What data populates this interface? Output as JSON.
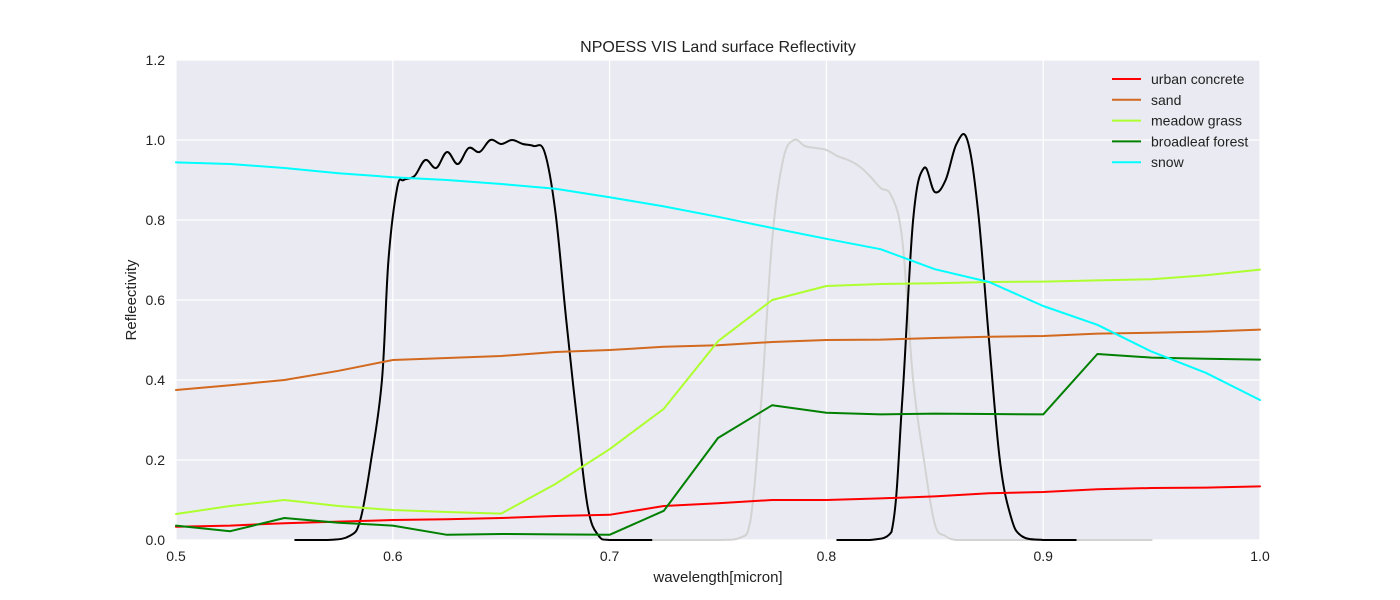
{
  "chart_data": {
    "type": "line",
    "title": "NPOESS VIS Land surface Reflectivity",
    "xlabel": "wavelength[micron]",
    "ylabel": "Refleectivity",
    "xlim": [
      0.5,
      1.0
    ],
    "ylim": [
      0.0,
      1.2
    ],
    "x_ticks": [
      0.5,
      0.6,
      0.7,
      0.8,
      0.9,
      1.0
    ],
    "x_tick_labels": [
      "0.5",
      "0.6",
      "0.7",
      "0.8",
      "0.9",
      "1.0"
    ],
    "y_ticks": [
      0.0,
      0.2,
      0.4,
      0.6,
      0.8,
      1.0,
      1.2
    ],
    "y_tick_labels": [
      "0.0",
      "0.2",
      "0.4",
      "0.6",
      "0.8",
      "1.0",
      "1.2"
    ],
    "grid": true,
    "background": "#eaeaf2",
    "legend_position": "top-right",
    "series": [
      {
        "name": "urban concrete",
        "color": "#ff0000",
        "x": [
          0.5,
          0.525,
          0.55,
          0.575,
          0.6,
          0.625,
          0.65,
          0.675,
          0.7,
          0.725,
          0.75,
          0.775,
          0.8,
          0.825,
          0.85,
          0.875,
          0.9,
          0.925,
          0.95,
          0.975,
          1.0
        ],
        "y": [
          0.033,
          0.036,
          0.042,
          0.046,
          0.05,
          0.052,
          0.055,
          0.06,
          0.063,
          0.085,
          0.092,
          0.1,
          0.1,
          0.104,
          0.109,
          0.117,
          0.12,
          0.127,
          0.13,
          0.131,
          0.134
        ]
      },
      {
        "name": "sand",
        "color": "#d2691e",
        "x": [
          0.5,
          0.525,
          0.55,
          0.575,
          0.6,
          0.625,
          0.65,
          0.675,
          0.7,
          0.725,
          0.75,
          0.775,
          0.8,
          0.825,
          0.85,
          0.875,
          0.9,
          0.925,
          0.95,
          0.975,
          1.0
        ],
        "y": [
          0.375,
          0.387,
          0.4,
          0.423,
          0.45,
          0.455,
          0.46,
          0.47,
          0.475,
          0.483,
          0.487,
          0.495,
          0.5,
          0.501,
          0.505,
          0.508,
          0.51,
          0.516,
          0.518,
          0.521,
          0.526
        ]
      },
      {
        "name": "meadow grass",
        "color": "#adff2f",
        "x": [
          0.5,
          0.525,
          0.55,
          0.575,
          0.6,
          0.625,
          0.65,
          0.675,
          0.7,
          0.725,
          0.75,
          0.775,
          0.8,
          0.825,
          0.85,
          0.875,
          0.9,
          0.925,
          0.95,
          0.975,
          1.0
        ],
        "y": [
          0.065,
          0.085,
          0.1,
          0.085,
          0.075,
          0.07,
          0.066,
          0.14,
          0.227,
          0.328,
          0.497,
          0.6,
          0.635,
          0.64,
          0.642,
          0.645,
          0.646,
          0.649,
          0.652,
          0.662,
          0.676
        ]
      },
      {
        "name": "broadleaf forest",
        "color": "#008000",
        "x": [
          0.5,
          0.525,
          0.55,
          0.575,
          0.6,
          0.625,
          0.65,
          0.675,
          0.7,
          0.725,
          0.75,
          0.775,
          0.8,
          0.825,
          0.85,
          0.875,
          0.9,
          0.925,
          0.95,
          0.975,
          1.0
        ],
        "y": [
          0.036,
          0.022,
          0.055,
          0.043,
          0.036,
          0.013,
          0.015,
          0.014,
          0.013,
          0.073,
          0.255,
          0.337,
          0.318,
          0.314,
          0.316,
          0.315,
          0.314,
          0.465,
          0.456,
          0.453,
          0.451
        ]
      },
      {
        "name": "snow",
        "color": "#00ffff",
        "x": [
          0.5,
          0.525,
          0.55,
          0.575,
          0.6,
          0.625,
          0.65,
          0.675,
          0.7,
          0.725,
          0.75,
          0.775,
          0.8,
          0.825,
          0.85,
          0.875,
          0.9,
          0.925,
          0.95,
          0.975,
          1.0
        ],
        "y": [
          0.944,
          0.94,
          0.93,
          0.917,
          0.907,
          0.9,
          0.89,
          0.878,
          0.857,
          0.834,
          0.808,
          0.78,
          0.753,
          0.727,
          0.677,
          0.645,
          0.585,
          0.538,
          0.471,
          0.418,
          0.35
        ]
      }
    ],
    "unlabeled_curves": [
      {
        "color": "#000000",
        "x": [
          0.555,
          0.57,
          0.58,
          0.585,
          0.59,
          0.595,
          0.598,
          0.602,
          0.605,
          0.61,
          0.615,
          0.62,
          0.625,
          0.63,
          0.635,
          0.64,
          0.645,
          0.65,
          0.655,
          0.66,
          0.665,
          0.67,
          0.675,
          0.68,
          0.685,
          0.69,
          0.695,
          0.7,
          0.72
        ],
        "y": [
          0.0,
          0.0,
          0.01,
          0.05,
          0.2,
          0.4,
          0.7,
          0.88,
          0.9,
          0.91,
          0.95,
          0.93,
          0.97,
          0.94,
          0.98,
          0.97,
          1.0,
          0.99,
          1.0,
          0.99,
          0.985,
          0.97,
          0.82,
          0.55,
          0.3,
          0.08,
          0.01,
          0.0,
          0.0
        ]
      },
      {
        "color": "#d3d3d3",
        "x": [
          0.72,
          0.75,
          0.76,
          0.765,
          0.77,
          0.775,
          0.78,
          0.785,
          0.79,
          0.795,
          0.8,
          0.805,
          0.81,
          0.815,
          0.82,
          0.825,
          0.83,
          0.835,
          0.84,
          0.845,
          0.85,
          0.855,
          0.86,
          0.87,
          0.95
        ],
        "y": [
          0.0,
          0.0,
          0.005,
          0.05,
          0.35,
          0.75,
          0.95,
          1.0,
          0.985,
          0.98,
          0.975,
          0.96,
          0.95,
          0.935,
          0.91,
          0.88,
          0.86,
          0.75,
          0.4,
          0.2,
          0.04,
          0.01,
          0.0,
          0.0,
          0.0
        ]
      },
      {
        "color": "#000000",
        "x": [
          0.805,
          0.82,
          0.83,
          0.835,
          0.84,
          0.845,
          0.85,
          0.855,
          0.86,
          0.865,
          0.87,
          0.875,
          0.88,
          0.885,
          0.89,
          0.9,
          0.915
        ],
        "y": [
          0.0,
          0.0,
          0.02,
          0.35,
          0.8,
          0.93,
          0.87,
          0.9,
          0.99,
          1.0,
          0.82,
          0.5,
          0.2,
          0.06,
          0.01,
          0.0,
          0.0
        ]
      }
    ]
  }
}
